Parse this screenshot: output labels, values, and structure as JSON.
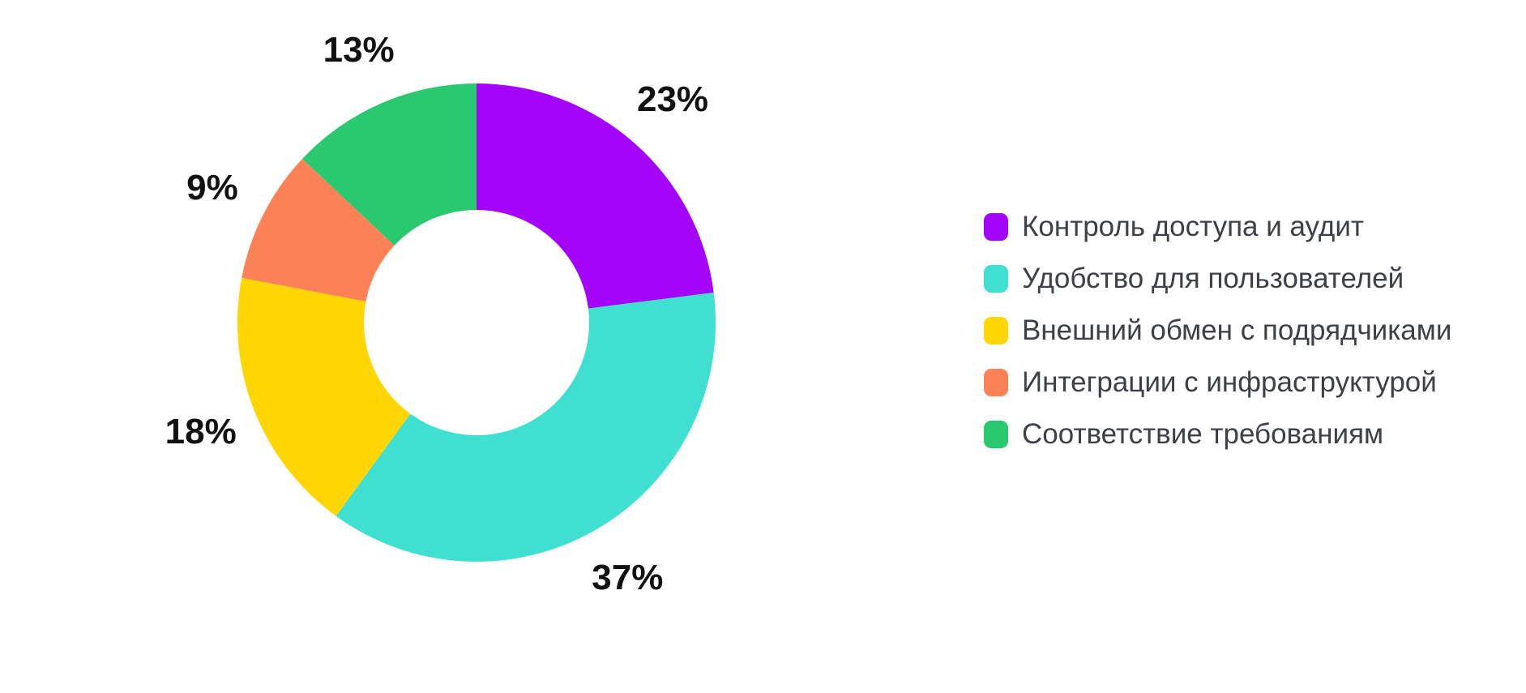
{
  "chart_data": {
    "type": "pie",
    "subtype": "donut",
    "title": "",
    "units": "%",
    "direction": "clockwise",
    "start_angle_deg": 0,
    "donut_hole_ratio": 0.47,
    "legend_position": "right",
    "background": "#ffffff",
    "label_color": "#111111",
    "legend_text_color": "#3d4045",
    "series": [
      {
        "label": "Контроль доступа и аудит",
        "value": 23,
        "pct_label": "23%",
        "color": "#a504fb"
      },
      {
        "label": "Удобство для пользователей",
        "value": 37,
        "pct_label": "37%",
        "color": "#3fe0d0"
      },
      {
        "label": "Внешний обмен с подрядчиками",
        "value": 18,
        "pct_label": "18%",
        "color": "#ffd502"
      },
      {
        "label": "Интеграции с инфраструктурой",
        "value": 9,
        "pct_label": "9%",
        "color": "#fc8156"
      },
      {
        "label": "Соответствие требованиям",
        "value": 13,
        "pct_label": "13%",
        "color": "#2bc96f"
      }
    ]
  }
}
